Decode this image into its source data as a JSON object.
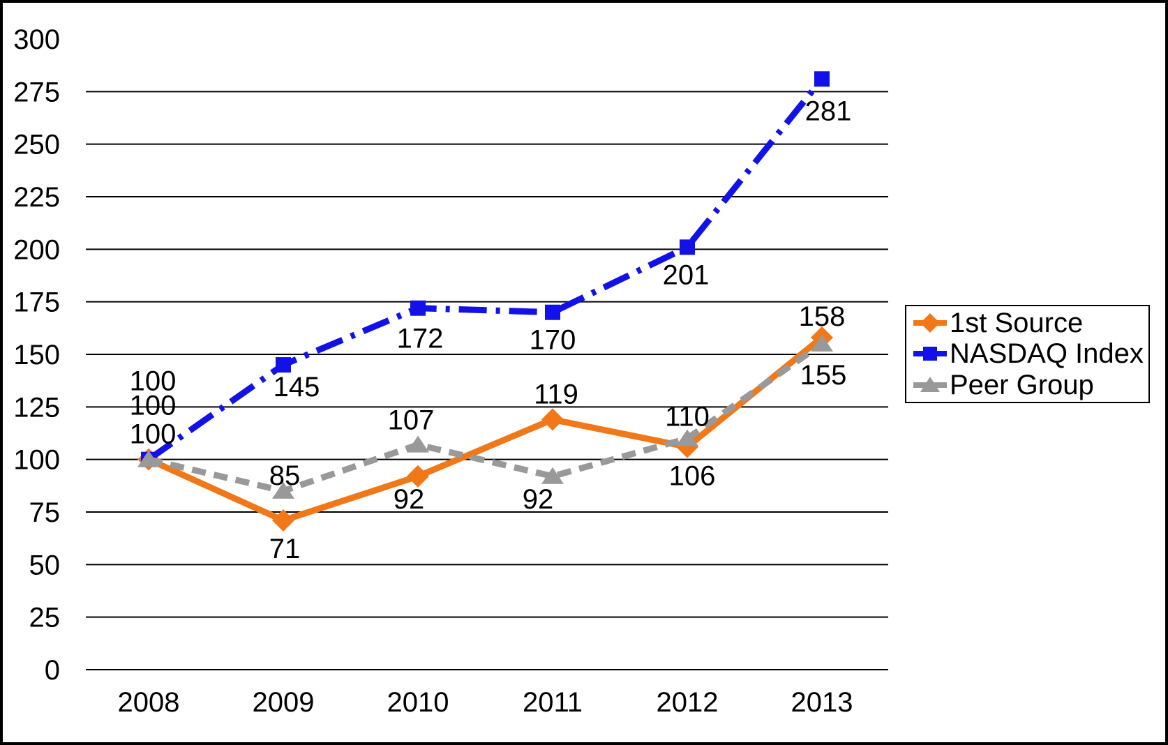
{
  "frame": {
    "background": "#FFFFFF",
    "border_color": "#000000"
  },
  "chart_data": {
    "type": "line",
    "title": "",
    "xlabel": "",
    "ylabel": "",
    "categories": [
      "2008",
      "2009",
      "2010",
      "2011",
      "2012",
      "2013"
    ],
    "series": [
      {
        "name": "1st Source",
        "color": "#F07818",
        "marker": "diamond",
        "line_style": "solid",
        "values": [
          100,
          71,
          92,
          119,
          106,
          158
        ],
        "label_offsets": [
          [
            6,
            -113
          ],
          [
            2,
            40
          ],
          [
            -13,
            32
          ],
          [
            5,
            -37
          ],
          [
            7,
            41
          ],
          [
            0,
            -31
          ]
        ]
      },
      {
        "name": "NASDAQ Index",
        "color": "#1212E8",
        "marker": "square",
        "line_style": "dash-dot",
        "values": [
          100,
          145,
          172,
          170,
          201,
          281
        ],
        "label_offsets": [
          [
            6,
            -78
          ],
          [
            19,
            31
          ],
          [
            3,
            43
          ],
          [
            0,
            39
          ],
          [
            -2,
            39
          ],
          [
            9,
            45
          ]
        ]
      },
      {
        "name": "Peer Group",
        "color": "#999999",
        "marker": "triangle",
        "line_style": "dashed",
        "values": [
          100,
          85,
          107,
          92,
          110,
          155
        ],
        "label_offsets": [
          [
            6,
            -37
          ],
          [
            2,
            -23
          ],
          [
            -10,
            -36
          ],
          [
            -21,
            32
          ],
          [
            0,
            -32
          ],
          [
            2,
            44
          ]
        ]
      }
    ],
    "ylim": [
      0,
      300
    ],
    "y_ticks": [
      0,
      25,
      50,
      75,
      100,
      125,
      150,
      175,
      200,
      225,
      250,
      275,
      300
    ],
    "gridlines": {
      "show": true,
      "top_value": 275,
      "color": "#000000"
    },
    "data_labels": true,
    "legend": {
      "position": "right",
      "border": true
    }
  }
}
